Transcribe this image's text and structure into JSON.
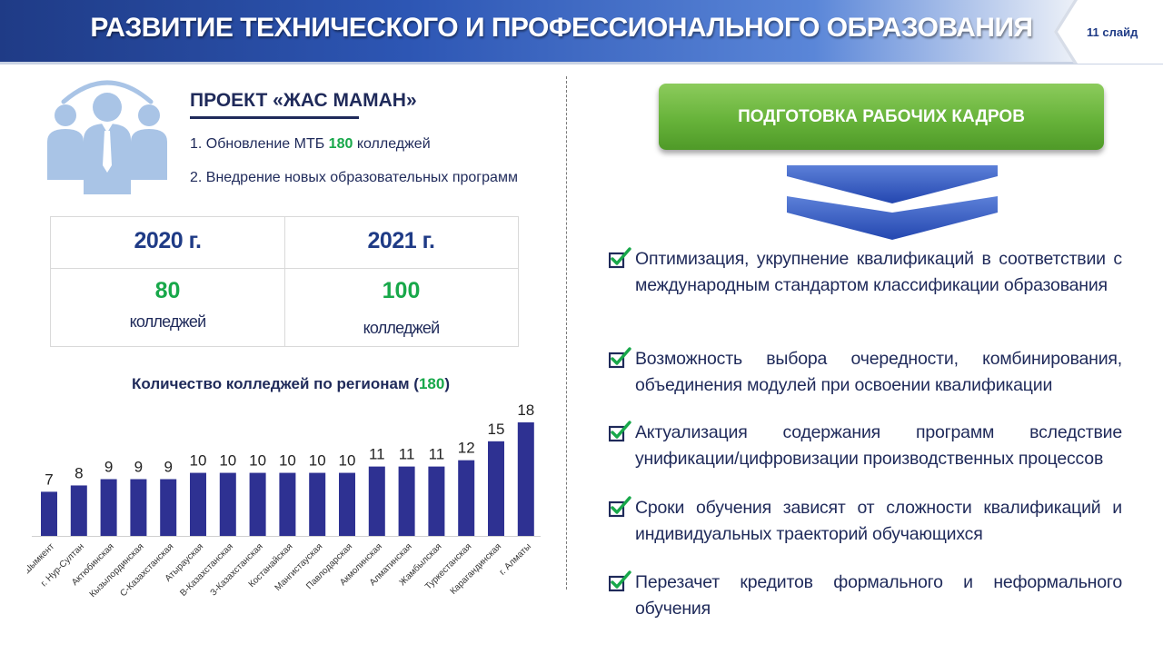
{
  "header": {
    "title": "РАЗВИТИЕ ТЕХНИЧЕСКОГО И ПРОФЕССИОНАЛЬНОГО ОБРАЗОВАНИЯ",
    "slide_label": "11 слайд"
  },
  "project": {
    "title": "ПРОЕКТ «ЖАС МАМАН»",
    "item1_prefix": "1. Обновление МТБ ",
    "item1_number": "180",
    "item1_suffix": " колледжей",
    "item2": "2. Внедрение новых образовательных программ"
  },
  "stats": {
    "col1": {
      "year": "2020 г.",
      "value": "80",
      "unit": "колледжей"
    },
    "col2": {
      "year": "2021 г.",
      "value": "100",
      "unit": "колледжей"
    }
  },
  "chart_title": {
    "prefix": "Количество колледжей по регионам (",
    "number": "180",
    "suffix": ")"
  },
  "chart_data": {
    "type": "bar",
    "title": "Количество колледжей по регионам (180)",
    "categories": [
      "г. Шымкент",
      "г. Нур-Султан",
      "Актюбинская",
      "Кызылординская",
      "С-Казахстанская",
      "Атырауская",
      "В-Казахстанская",
      "З-Казахстанская",
      "Костанайская",
      "Мангистауская",
      "Павлодарская",
      "Акмолинская",
      "Алматинская",
      "Жамбылская",
      "Туркестанская",
      "Карагандинская",
      "г. Алматы"
    ],
    "values": [
      7,
      8,
      9,
      9,
      9,
      10,
      10,
      10,
      10,
      10,
      10,
      11,
      11,
      11,
      12,
      15,
      18
    ],
    "bar_color": "#2e3192",
    "ylim": [
      0,
      18
    ],
    "grid": false,
    "data_labels": true
  },
  "right": {
    "button_label": "ПОДГОТОВКА РАБОЧИХ КАДРОВ",
    "bullets": [
      "Оптимизация, укрупнение квалификаций в соответствии с международным стандартом классификации образования",
      "Возможность выбора очередности, комбинирования, объединения модулей при освоении квалификации",
      "Актуализация содержания программ вследствие унификации/цифровизации производственных процессов",
      "Сроки обучения зависят от сложности квалификаций и индивидуальных траекторий обучающихся",
      "Перезачет кредитов формального и неформального обучения"
    ]
  },
  "colors": {
    "header_dark": "#1f3b86",
    "accent_green": "#18a84a",
    "button_green": "#67b33a",
    "text_navy": "#1f2a5a",
    "chevron_blue": "#3358c4"
  },
  "icons": {
    "people": "people-group-icon",
    "chevrons": "double-chevron-down-icon",
    "check": "checkbox-checked-icon"
  }
}
